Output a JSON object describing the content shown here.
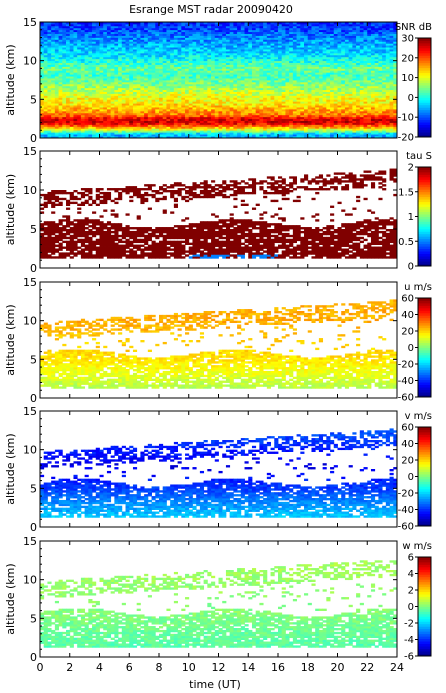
{
  "figure": {
    "title": "Esrange MST radar 20090420",
    "xlabel": "time (UT)",
    "x_ticks": [
      "0",
      "2",
      "4",
      "6",
      "8",
      "10",
      "12",
      "14",
      "16",
      "18",
      "20",
      "22",
      "24"
    ]
  },
  "chart_data": [
    {
      "type": "heatmap",
      "quantity": "SNR",
      "colorbar_label": "SNR dB",
      "colorbar_ticks": [
        "30",
        "20",
        "10",
        "0",
        "-10",
        "-20"
      ],
      "clim": [
        -20,
        30
      ],
      "xlim": [
        0,
        24
      ],
      "ylim": [
        0,
        15
      ],
      "ylabel": "altitude (km)",
      "y_ticks": [
        "15",
        "10",
        "5",
        "0"
      ],
      "coverage": "full",
      "profile": {
        "altitude_km": [
          0.5,
          1,
          2,
          2.5,
          3,
          3.5,
          4.5,
          5.5,
          7,
          8,
          9,
          10,
          11,
          12,
          14,
          15
        ],
        "value": [
          -5,
          8,
          26,
          25,
          18,
          16,
          12,
          10,
          5,
          2,
          4,
          0,
          -3,
          -5,
          -10,
          -12
        ]
      }
    },
    {
      "type": "heatmap",
      "quantity": "tau",
      "colorbar_label": "tau S",
      "colorbar_ticks": [
        "2",
        "1.5",
        "1",
        "0.5",
        "0"
      ],
      "clim": [
        0,
        2
      ],
      "xlim": [
        0,
        24
      ],
      "ylim": [
        0,
        15
      ],
      "ylabel": "altitude (km)",
      "y_ticks": [
        "15",
        "10",
        "5",
        "0"
      ],
      "coverage": "layers",
      "typical_value": 2,
      "low_value_region": {
        "time_ut": [
          10,
          16
        ],
        "altitude_km": [
          1.2,
          1.8
        ],
        "value": 0.5
      }
    },
    {
      "type": "heatmap",
      "quantity": "u",
      "colorbar_label": "u m/s",
      "colorbar_ticks": [
        "60",
        "40",
        "20",
        "0",
        "-20",
        "-40",
        "-60"
      ],
      "clim": [
        -60,
        60
      ],
      "xlim": [
        0,
        24
      ],
      "ylim": [
        0,
        15
      ],
      "ylabel": "altitude (km)",
      "y_ticks": [
        "15",
        "10",
        "5",
        "0"
      ],
      "coverage": "layers",
      "profile": {
        "altitude_km": [
          1,
          3,
          5,
          8,
          10,
          12
        ],
        "value": [
          5,
          12,
          18,
          22,
          25,
          24
        ]
      }
    },
    {
      "type": "heatmap",
      "quantity": "v",
      "colorbar_label": "v m/s",
      "colorbar_ticks": [
        "60",
        "40",
        "20",
        "0",
        "-20",
        "-40",
        "-60"
      ],
      "clim": [
        -60,
        60
      ],
      "xlim": [
        0,
        24
      ],
      "ylim": [
        0,
        15
      ],
      "ylabel": "altitude (km)",
      "y_ticks": [
        "15",
        "10",
        "5",
        "0"
      ],
      "coverage": "layers",
      "profile": {
        "altitude_km": [
          1,
          3,
          5,
          8,
          10,
          12
        ],
        "value": [
          -20,
          -28,
          -38,
          -48,
          -42,
          -36
        ]
      }
    },
    {
      "type": "heatmap",
      "quantity": "w",
      "colorbar_label": "w m/s",
      "colorbar_ticks": [
        "6",
        "4",
        "2",
        "0",
        "-2",
        "-4",
        "-6"
      ],
      "clim": [
        -6,
        6
      ],
      "xlim": [
        0,
        24
      ],
      "ylim": [
        0,
        15
      ],
      "ylabel": "altitude (km)",
      "y_ticks": [
        "15",
        "10",
        "5",
        "0"
      ],
      "coverage": "layers",
      "profile": {
        "altitude_km": [
          1,
          3,
          5,
          8,
          10,
          12
        ],
        "value": [
          -0.5,
          -0.3,
          0,
          0.2,
          0.3,
          0.4
        ]
      }
    }
  ]
}
